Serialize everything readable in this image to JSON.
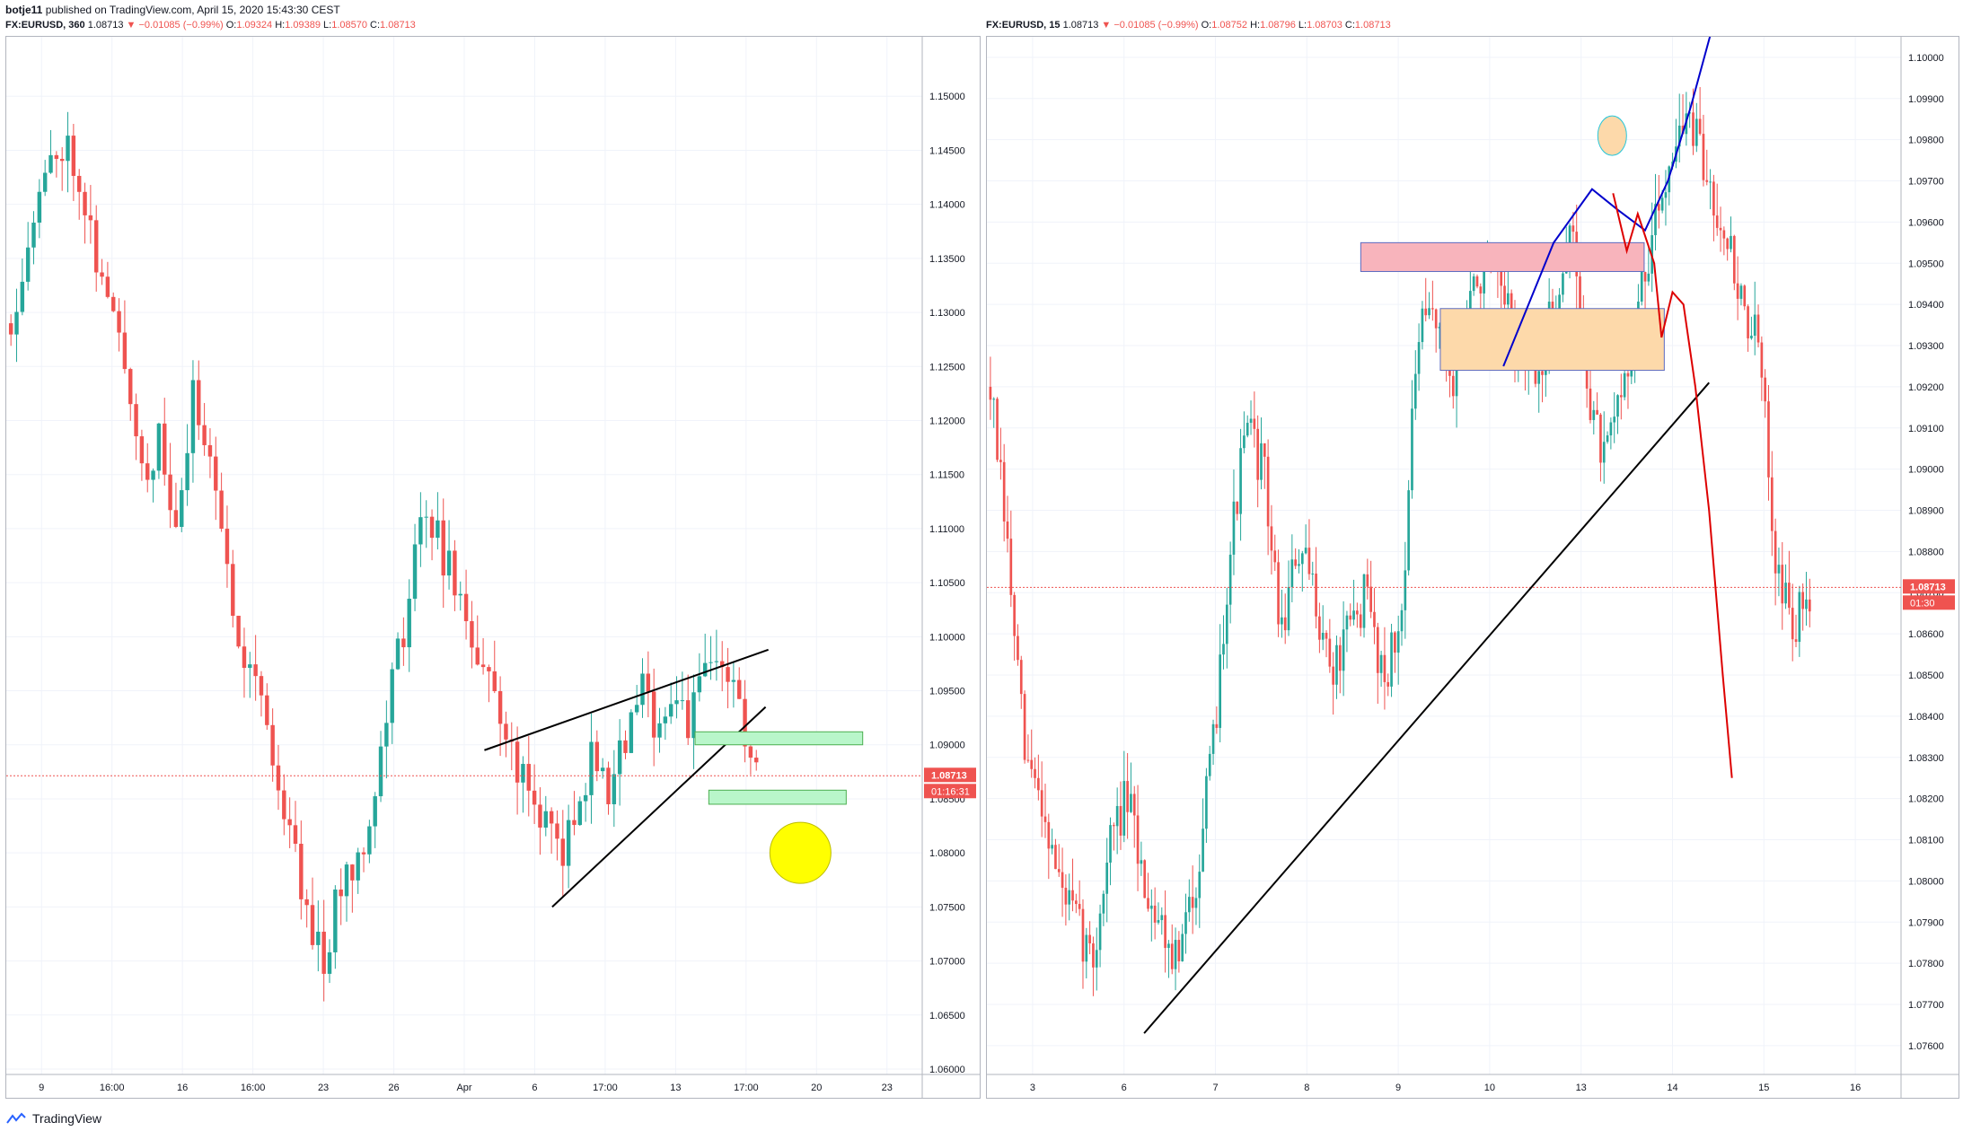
{
  "header": {
    "author": "botje11",
    "published_text": "published on TradingView.com, April 15, 2020 15:43:30 CEST"
  },
  "left_chart": {
    "symbol": "FX:EURUSD, 360",
    "last": "1.08713",
    "change": "−0.01085 (−0.99%)",
    "o_label": "O:",
    "o": "1.09324",
    "h_label": "H:",
    "h": "1.09389",
    "l_label": "L:",
    "l": "1.08570",
    "c_label": "C:",
    "c": "1.08713",
    "price_badge": "1.08713",
    "time_badge": "01:16:31"
  },
  "right_chart": {
    "symbol": "FX:EURUSD, 15",
    "last": "1.08713",
    "change": "−0.01085 (−0.99%)",
    "o_label": "O:",
    "o": "1.08752",
    "h_label": "H:",
    "h": "1.08796",
    "l_label": "L:",
    "l": "1.08703",
    "c_label": "C:",
    "c": "1.08713",
    "price_badge": "1.08713",
    "time_badge": "01:30"
  },
  "footer": {
    "brand": "TradingView"
  },
  "colors": {
    "up": "#26a69a",
    "down": "#ef5350",
    "grid": "#f0f3fa",
    "axis": "#b2b5be"
  },
  "chart_data": [
    {
      "type": "candlestick",
      "title": "FX:EURUSD, 360",
      "x_tick_labels": [
        "9",
        "16:00",
        "16",
        "16:00",
        "23",
        "26",
        "Apr",
        "6",
        "17:00",
        "13",
        "17:00",
        "20",
        "23"
      ],
      "y_tick_labels": [
        "1.15000",
        "1.14500",
        "1.14000",
        "1.13500",
        "1.13000",
        "1.12500",
        "1.12000",
        "1.11500",
        "1.11000",
        "1.10500",
        "1.10000",
        "1.09500",
        "1.09000",
        "1.08500",
        "1.08000",
        "1.07500",
        "1.07000",
        "1.06500",
        "1.06000"
      ],
      "ylim": [
        1.0595,
        1.1555
      ],
      "last_price": 1.08713,
      "close_path": [
        1.129,
        1.137,
        1.142,
        1.146,
        1.144,
        1.136,
        1.13,
        1.125,
        1.115,
        1.118,
        1.109,
        1.122,
        1.118,
        1.106,
        1.099,
        1.096,
        1.087,
        1.081,
        1.074,
        1.07,
        1.078,
        1.08,
        1.086,
        1.096,
        1.103,
        1.113,
        1.108,
        1.104,
        1.099,
        1.095,
        1.091,
        1.086,
        1.084,
        1.08,
        1.082,
        1.089,
        1.086,
        1.09,
        1.095,
        1.092,
        1.095,
        1.092,
        1.097,
        1.098,
        1.093,
        1.0871
      ],
      "annotations": {
        "trendline_upper": [
          [
            0.522,
            1.0895
          ],
          [
            0.832,
            1.0988
          ]
        ],
        "trendline_lower": [
          [
            0.596,
            1.075
          ],
          [
            0.829,
            1.0935
          ]
        ],
        "support_zones": [
          [
            1.09,
            1.0912
          ],
          [
            1.0845,
            1.0858
          ]
        ],
        "target_circle": 1.08
      }
    },
    {
      "type": "candlestick",
      "title": "FX:EURUSD, 15",
      "x_tick_labels": [
        "3",
        "6",
        "7",
        "8",
        "9",
        "10",
        "13",
        "14",
        "15",
        "16"
      ],
      "y_tick_labels": [
        "1.10000",
        "1.09900",
        "1.09800",
        "1.09700",
        "1.09600",
        "1.09500",
        "1.09400",
        "1.09300",
        "1.09200",
        "1.09100",
        "1.09000",
        "1.08900",
        "1.08800",
        "1.08700",
        "1.08600",
        "1.08500",
        "1.08400",
        "1.08300",
        "1.08200",
        "1.08100",
        "1.08000",
        "1.07900",
        "1.07800",
        "1.07700",
        "1.07600"
      ],
      "ylim": [
        1.0753,
        1.1005
      ],
      "last_price": 1.08713,
      "close_path": [
        1.092,
        1.088,
        1.083,
        1.082,
        1.08,
        1.079,
        1.078,
        1.081,
        1.082,
        1.08,
        1.079,
        1.078,
        1.08,
        1.083,
        1.088,
        1.091,
        1.09,
        1.086,
        1.088,
        1.087,
        1.085,
        1.086,
        1.087,
        1.085,
        1.086,
        1.093,
        1.094,
        1.092,
        1.094,
        1.095,
        1.094,
        1.093,
        1.092,
        1.094,
        1.096,
        1.092,
        1.09,
        1.092,
        1.094,
        1.096,
        1.098,
        1.0985,
        1.097,
        1.096,
        1.094,
        1.093,
        1.088,
        1.086,
        1.0871
      ],
      "annotations": {
        "trendline": [
          [
            0.172,
            1.0763
          ],
          [
            0.79,
            1.0921
          ]
        ],
        "resistance_zone": [
          1.0948,
          1.0955
        ],
        "supply_zone": [
          1.0924,
          1.0939
        ],
        "highlight_circle": 1.0981
      }
    }
  ]
}
